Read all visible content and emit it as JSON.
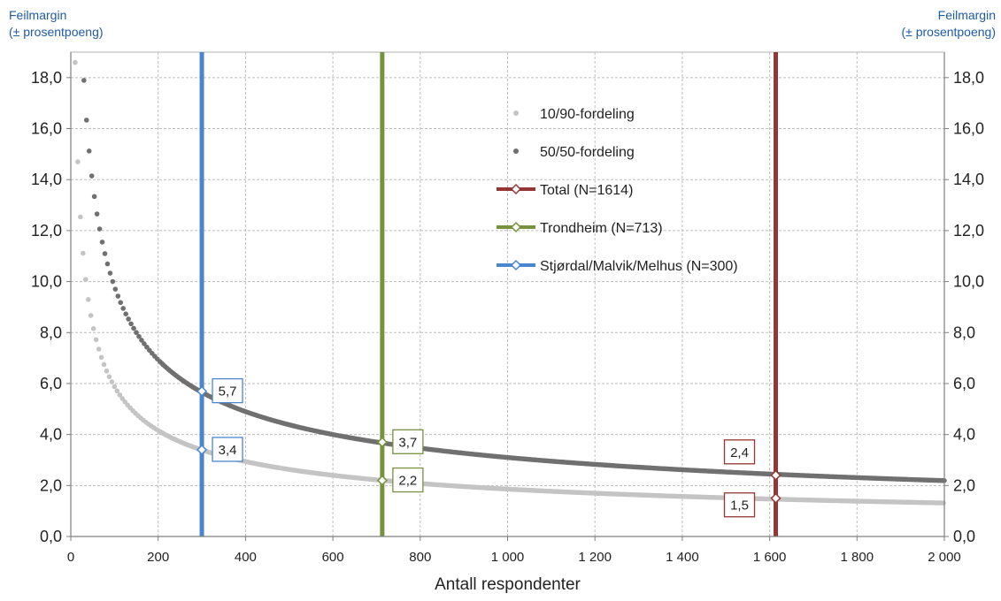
{
  "chart_data": {
    "type": "scatter",
    "xlabel": "Antall respondenter",
    "ylabel_left": [
      "Feilmargin",
      "(± prosentpoeng)"
    ],
    "ylabel_right": [
      "Feilmargin",
      "(± prosentpoeng)"
    ],
    "xlim": [
      0,
      2000
    ],
    "ylim": [
      0,
      19
    ],
    "x_ticks": [
      0,
      200,
      400,
      600,
      800,
      1000,
      1200,
      1400,
      1600,
      1800,
      2000
    ],
    "x_tick_labels": [
      "0",
      "200",
      "400",
      "600",
      "800",
      "1 000",
      "1 200",
      "1 400",
      "1 600",
      "1 800",
      "2 000"
    ],
    "y_ticks": [
      0,
      2,
      4,
      6,
      8,
      10,
      12,
      14,
      16,
      18
    ],
    "y_tick_labels": [
      "0,0",
      "2,0",
      "4,0",
      "6,0",
      "8,0",
      "10,0",
      "12,0",
      "14,0",
      "16,0",
      "18,0"
    ],
    "grid": true,
    "legend_position": "top-center",
    "series": [
      {
        "name": "10/90-fordeling",
        "kind": "dots",
        "color": "#c4c4c4",
        "formula": "196*sqrt(0.09/n)",
        "n_range": [
          10,
          2000
        ]
      },
      {
        "name": "50/50-fordeling",
        "kind": "dots",
        "color": "#707070",
        "formula": "196*sqrt(0.25/n)",
        "n_range": [
          30,
          2000
        ]
      }
    ],
    "reference_lines": [
      {
        "name": "Total (N=1614)",
        "x": 1614,
        "color": "#943634",
        "markers": [
          {
            "y": 2.4,
            "label": "2,4"
          },
          {
            "y": 1.5,
            "label": "1,5"
          }
        ]
      },
      {
        "name": "Trondheim (N=713)",
        "x": 713,
        "color": "#76923c",
        "markers": [
          {
            "y": 3.7,
            "label": "3,7"
          },
          {
            "y": 2.2,
            "label": "2,2"
          }
        ]
      },
      {
        "name": "Stjørdal/Malvik/Melhus (N=300)",
        "x": 300,
        "color": "#4a86d0",
        "markers": [
          {
            "y": 5.7,
            "label": "5,7"
          },
          {
            "y": 3.4,
            "label": "3,4"
          }
        ]
      }
    ]
  }
}
